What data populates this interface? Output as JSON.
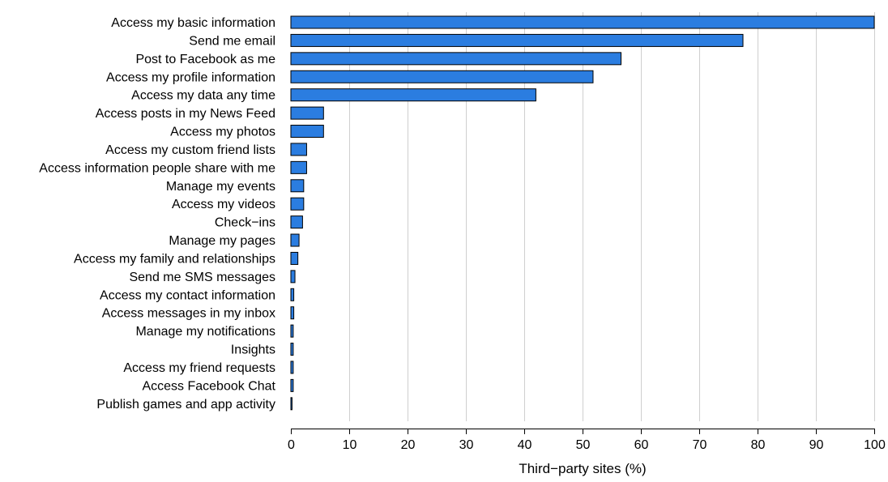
{
  "chart_data": {
    "type": "bar",
    "orientation": "horizontal",
    "categories": [
      "Access my basic information",
      "Send me email",
      "Post to Facebook as me",
      "Access my profile information",
      "Access my data any time",
      "Access posts in my News Feed",
      "Access my photos",
      "Access my custom friend lists",
      "Access information people share with me",
      "Manage my events",
      "Access my videos",
      "Check−ins",
      "Manage my pages",
      "Access my family and relationships",
      "Send me SMS messages",
      "Access my contact information",
      "Access messages in my inbox",
      "Manage my notifications",
      "Insights",
      "Access my friend requests",
      "Access Facebook Chat",
      "Publish games and app activity"
    ],
    "values": [
      100,
      77.5,
      56.6,
      51.8,
      42.0,
      5.6,
      5.6,
      2.7,
      2.7,
      2.2,
      2.2,
      2.0,
      1.4,
      1.2,
      0.7,
      0.5,
      0.5,
      0.4,
      0.4,
      0.4,
      0.4,
      0.2
    ],
    "xlabel": "Third−party sites (%)",
    "ylabel": "",
    "xlim": [
      0,
      100
    ],
    "xticks": [
      "0",
      "10",
      "20",
      "30",
      "40",
      "50",
      "60",
      "70",
      "80",
      "90",
      "100"
    ],
    "grid": "vertical",
    "bar_color": "#2b7de0"
  }
}
